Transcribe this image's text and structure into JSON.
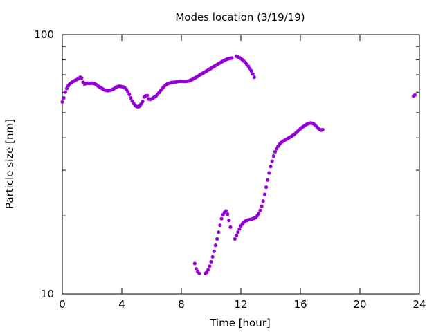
{
  "chart_data": {
    "type": "scatter",
    "title": "Modes location (3/19/19)",
    "xlabel": "Time [hour]",
    "ylabel": "Particle size [nm]",
    "xlim": [
      0,
      24
    ],
    "ylim": [
      10,
      100
    ],
    "yscale": "log",
    "grid": false,
    "legend": "none",
    "marker_color": "#9400d3",
    "xticks": [
      0,
      4,
      8,
      12,
      16,
      20,
      24
    ],
    "xtick_labels": [
      "0",
      "4",
      "8",
      "12",
      "16",
      "20",
      "24"
    ],
    "yticks": [
      10,
      100
    ],
    "ytick_labels": [
      "10",
      "100"
    ],
    "series": [
      {
        "points": [
          [
            0.0,
            55
          ],
          [
            0.1,
            57
          ],
          [
            0.2,
            60
          ],
          [
            0.3,
            62
          ],
          [
            0.4,
            63.5
          ],
          [
            0.5,
            64.5
          ],
          [
            0.6,
            65.2
          ],
          [
            0.7,
            65.8
          ],
          [
            0.8,
            66.3
          ],
          [
            0.9,
            66.8
          ],
          [
            1.0,
            67.2
          ],
          [
            1.1,
            67.8
          ],
          [
            1.2,
            68.5
          ],
          [
            1.3,
            68
          ],
          [
            1.4,
            65.5
          ],
          [
            1.5,
            64.5
          ],
          [
            1.6,
            64.8
          ],
          [
            1.7,
            65
          ],
          [
            1.8,
            64.8
          ],
          [
            1.9,
            64.9
          ],
          [
            2.0,
            65
          ],
          [
            2.1,
            64.8
          ],
          [
            2.2,
            64.5
          ],
          [
            2.3,
            64
          ],
          [
            2.4,
            63.3
          ],
          [
            2.5,
            62.8
          ],
          [
            2.6,
            62.3
          ],
          [
            2.7,
            61.8
          ],
          [
            2.8,
            61.3
          ],
          [
            2.9,
            61
          ],
          [
            3.0,
            60.8
          ],
          [
            3.1,
            60.8
          ],
          [
            3.2,
            61
          ],
          [
            3.3,
            61.2
          ],
          [
            3.4,
            61.5
          ],
          [
            3.5,
            62
          ],
          [
            3.6,
            62.6
          ],
          [
            3.7,
            63
          ],
          [
            3.8,
            63.2
          ],
          [
            3.9,
            63.2
          ],
          [
            4.0,
            63
          ],
          [
            4.1,
            62.8
          ],
          [
            4.2,
            62.3
          ],
          [
            4.3,
            61.5
          ],
          [
            4.4,
            60.3
          ],
          [
            4.5,
            58.8
          ],
          [
            4.6,
            57
          ],
          [
            4.7,
            55.5
          ],
          [
            4.8,
            54.2
          ],
          [
            4.9,
            53.2
          ],
          [
            5.0,
            52.8
          ],
          [
            5.1,
            52.6
          ],
          [
            5.2,
            53
          ],
          [
            5.3,
            54
          ],
          [
            5.4,
            55.2
          ],
          [
            5.5,
            57.5
          ],
          [
            5.6,
            58
          ],
          [
            5.7,
            58.2
          ],
          [
            5.8,
            56.5
          ],
          [
            5.9,
            56.2
          ],
          [
            6.0,
            56.5
          ],
          [
            6.1,
            57
          ],
          [
            6.2,
            57.5
          ],
          [
            6.3,
            58
          ],
          [
            6.4,
            58.8
          ],
          [
            6.5,
            59.8
          ],
          [
            6.6,
            60.8
          ],
          [
            6.7,
            61.8
          ],
          [
            6.8,
            62.8
          ],
          [
            6.9,
            63.6
          ],
          [
            7.0,
            64.2
          ],
          [
            7.1,
            64.7
          ],
          [
            7.2,
            65
          ],
          [
            7.3,
            65.3
          ],
          [
            7.4,
            65.4
          ],
          [
            7.5,
            65.5
          ],
          [
            7.6,
            65.6
          ],
          [
            7.7,
            65.8
          ],
          [
            7.8,
            66
          ],
          [
            7.9,
            66.1
          ],
          [
            8.0,
            66.1
          ],
          [
            8.1,
            66
          ],
          [
            8.2,
            66
          ],
          [
            8.3,
            66
          ],
          [
            8.4,
            66.1
          ],
          [
            8.5,
            66.3
          ],
          [
            8.6,
            66.6
          ],
          [
            8.7,
            67
          ],
          [
            8.8,
            67.5
          ],
          [
            8.9,
            68
          ],
          [
            9.0,
            68.5
          ],
          [
            9.1,
            69
          ],
          [
            9.2,
            69.6
          ],
          [
            9.3,
            70.2
          ],
          [
            9.4,
            70.8
          ],
          [
            9.5,
            71.3
          ],
          [
            9.6,
            71.8
          ],
          [
            9.7,
            72.4
          ],
          [
            9.8,
            73
          ],
          [
            9.9,
            73.6
          ],
          [
            10.0,
            74.2
          ],
          [
            10.1,
            74.8
          ],
          [
            10.2,
            75.4
          ],
          [
            10.3,
            76
          ],
          [
            10.4,
            76.6
          ],
          [
            10.5,
            77.2
          ],
          [
            10.6,
            77.8
          ],
          [
            10.7,
            78.4
          ],
          [
            10.8,
            79
          ],
          [
            10.9,
            79.6
          ],
          [
            11.0,
            80.1
          ],
          [
            11.1,
            80.5
          ],
          [
            11.2,
            80.8
          ],
          [
            11.3,
            81
          ],
          [
            11.4,
            81.2
          ],
          [
            11.7,
            82.5
          ],
          [
            11.8,
            82
          ],
          [
            11.9,
            81.5
          ],
          [
            12.0,
            80.8
          ],
          [
            12.1,
            80
          ],
          [
            12.2,
            79
          ],
          [
            12.3,
            78
          ],
          [
            12.4,
            76.8
          ],
          [
            12.5,
            75.5
          ],
          [
            12.6,
            74
          ],
          [
            12.7,
            72.5
          ],
          [
            12.8,
            70.5
          ],
          [
            12.9,
            68.5
          ]
        ]
      },
      {
        "points": [
          [
            8.9,
            13.1
          ],
          [
            9.0,
            12.5
          ],
          [
            9.1,
            12.2
          ],
          [
            9.2,
            12.0
          ],
          [
            9.6,
            12.0
          ],
          [
            9.7,
            12.1
          ],
          [
            9.8,
            12.4
          ],
          [
            9.9,
            12.8
          ],
          [
            10.0,
            13.3
          ],
          [
            10.1,
            13.9
          ],
          [
            10.2,
            14.6
          ],
          [
            10.3,
            15.4
          ],
          [
            10.4,
            16.3
          ],
          [
            10.5,
            17.3
          ],
          [
            10.6,
            18.4
          ],
          [
            10.7,
            19.5
          ],
          [
            10.8,
            20.2
          ],
          [
            10.9,
            20.6
          ],
          [
            11.0,
            20.9
          ],
          [
            11.1,
            20.3
          ],
          [
            11.2,
            19.2
          ],
          [
            11.3,
            18.1
          ],
          [
            11.6,
            16.3
          ],
          [
            11.7,
            16.8
          ],
          [
            11.8,
            17.3
          ],
          [
            11.9,
            17.8
          ],
          [
            12.0,
            18.3
          ],
          [
            12.1,
            18.6
          ],
          [
            12.2,
            18.9
          ],
          [
            12.3,
            19.1
          ],
          [
            12.4,
            19.2
          ],
          [
            12.5,
            19.3
          ],
          [
            12.6,
            19.35
          ],
          [
            12.7,
            19.4
          ],
          [
            12.8,
            19.5
          ],
          [
            12.9,
            19.6
          ],
          [
            13.0,
            19.7
          ],
          [
            13.1,
            20
          ],
          [
            13.2,
            20.4
          ],
          [
            13.3,
            21
          ],
          [
            13.4,
            21.8
          ],
          [
            13.5,
            22.8
          ],
          [
            13.6,
            24.2
          ],
          [
            13.7,
            25.8
          ],
          [
            13.8,
            27.5
          ],
          [
            13.9,
            29.3
          ],
          [
            14.0,
            31
          ],
          [
            14.1,
            32.5
          ],
          [
            14.2,
            34
          ],
          [
            14.3,
            35.3
          ],
          [
            14.4,
            36.3
          ],
          [
            14.5,
            37.1
          ],
          [
            14.6,
            37.8
          ],
          [
            14.7,
            38.3
          ],
          [
            14.8,
            38.7
          ],
          [
            14.9,
            39
          ],
          [
            15.0,
            39.3
          ],
          [
            15.1,
            39.6
          ],
          [
            15.2,
            39.9
          ],
          [
            15.3,
            40.2
          ],
          [
            15.4,
            40.5
          ],
          [
            15.5,
            40.9
          ],
          [
            15.6,
            41.3
          ],
          [
            15.7,
            41.8
          ],
          [
            15.8,
            42.3
          ],
          [
            15.9,
            42.8
          ],
          [
            16.0,
            43.3
          ],
          [
            16.1,
            43.8
          ],
          [
            16.2,
            44.2
          ],
          [
            16.3,
            44.6
          ],
          [
            16.4,
            45
          ],
          [
            16.5,
            45.3
          ],
          [
            16.6,
            45.5
          ],
          [
            16.7,
            45.6
          ],
          [
            16.8,
            45.5
          ],
          [
            16.9,
            45.2
          ],
          [
            17.0,
            44.7
          ],
          [
            17.1,
            44.1
          ],
          [
            17.2,
            43.5
          ],
          [
            17.3,
            43
          ],
          [
            17.4,
            42.8
          ],
          [
            17.5,
            43
          ]
        ]
      },
      {
        "points": [
          [
            23.6,
            58
          ],
          [
            23.7,
            58.5
          ]
        ]
      }
    ]
  }
}
